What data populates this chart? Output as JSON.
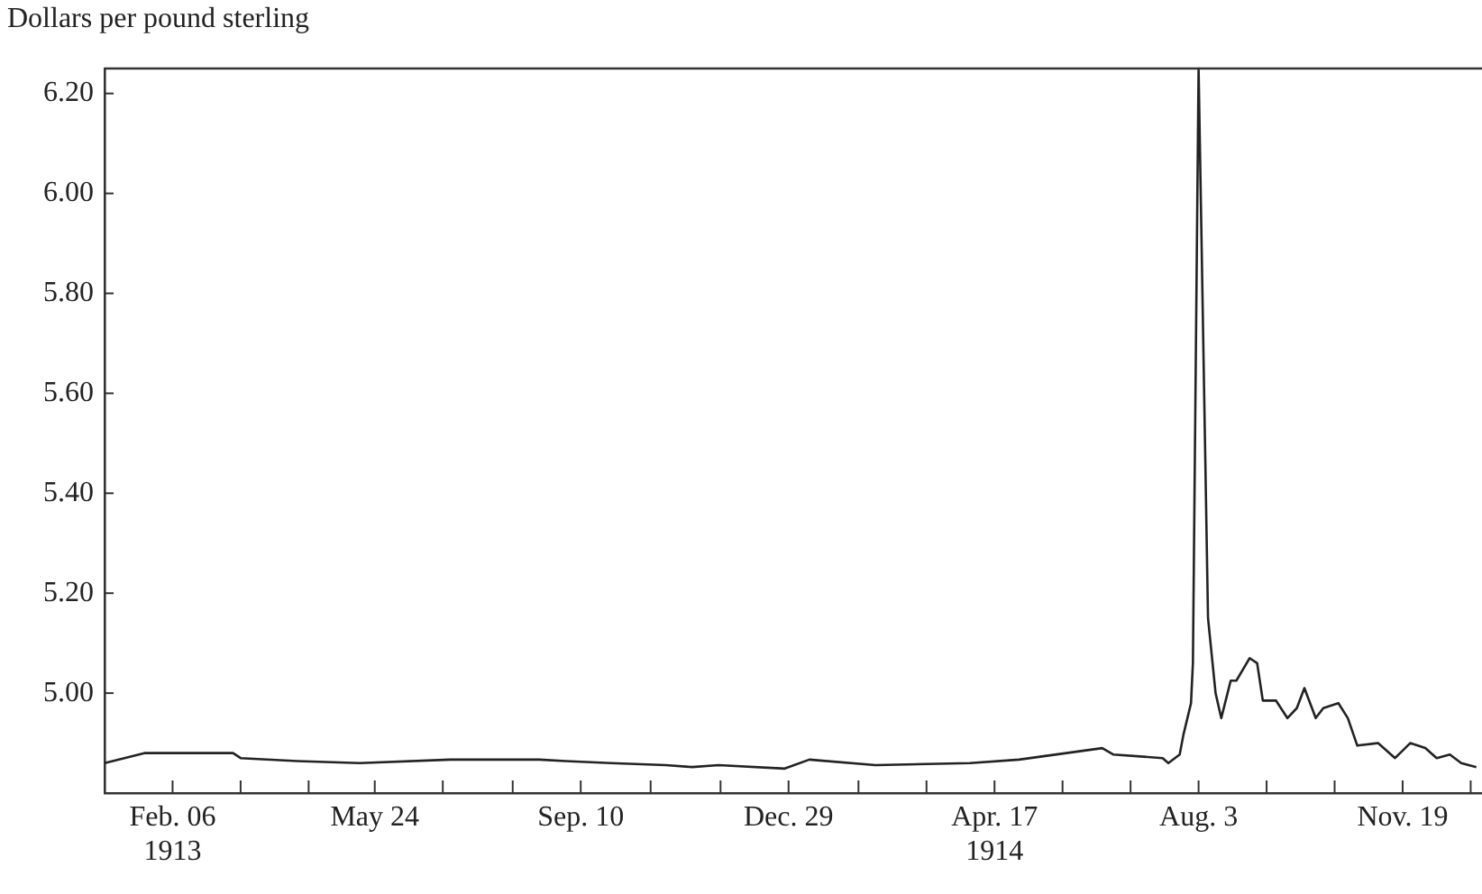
{
  "chart_data": {
    "type": "line",
    "ylabel": "Dollars per pound sterling",
    "color": "#222222",
    "marker": "none",
    "x": [
      "1913-01-01",
      "1913-01-22",
      "1913-02-10",
      "1913-03-10",
      "1913-03-14",
      "1913-04-13",
      "1913-05-16",
      "1913-07-03",
      "1913-08-19",
      "1913-09-02",
      "1913-09-26",
      "1913-10-25",
      "1913-11-08",
      "1913-11-22",
      "1913-12-27",
      "1914-01-09",
      "1914-02-13",
      "1914-04-04",
      "1914-04-30",
      "1914-06-13",
      "1914-06-19",
      "1914-07-15",
      "1914-07-18",
      "1914-07-24",
      "1914-07-26",
      "1914-07-30",
      "1914-07-31",
      "1914-08-03",
      "1914-08-08",
      "1914-08-12",
      "1914-08-15",
      "1914-08-20",
      "1914-08-23",
      "1914-08-30",
      "1914-09-03",
      "1914-09-06",
      "1914-09-13",
      "1914-09-19",
      "1914-09-24",
      "1914-09-28",
      "1914-10-04",
      "1914-10-08",
      "1914-10-16",
      "1914-10-21",
      "1914-10-26",
      "1914-11-06",
      "1914-11-15",
      "1914-11-23",
      "1914-12-01",
      "1914-12-07",
      "1914-12-14",
      "1914-12-20",
      "1914-12-28"
    ],
    "values": [
      4.86,
      4.88,
      4.88,
      4.88,
      4.87,
      4.864,
      4.86,
      4.867,
      4.867,
      4.864,
      4.86,
      4.856,
      4.852,
      4.856,
      4.849,
      4.867,
      4.856,
      4.86,
      4.867,
      4.89,
      4.877,
      4.87,
      4.86,
      4.877,
      4.917,
      4.98,
      5.06,
      6.25,
      5.15,
      5.0,
      4.95,
      5.025,
      5.025,
      5.07,
      5.06,
      4.985,
      4.985,
      4.95,
      4.97,
      5.01,
      4.95,
      4.97,
      4.98,
      4.95,
      4.895,
      4.9,
      4.87,
      4.9,
      4.89,
      4.87,
      4.877,
      4.86,
      4.852
    ],
    "xlim": [
      "1913-01-01",
      "1914-12-31"
    ],
    "xticks": [
      {
        "value": "1913-02-06",
        "label": "Feb. 06\n1913"
      },
      {
        "value": "1913-03-14",
        "label": null
      },
      {
        "value": "1913-04-19",
        "label": null
      },
      {
        "value": "1913-05-24",
        "label": "May 24"
      },
      {
        "value": "1913-06-29",
        "label": null
      },
      {
        "value": "1913-08-05",
        "label": null
      },
      {
        "value": "1913-09-10",
        "label": "Sep. 10"
      },
      {
        "value": "1913-10-17",
        "label": null
      },
      {
        "value": "1913-11-23",
        "label": null
      },
      {
        "value": "1913-12-29",
        "label": "Dec. 29"
      },
      {
        "value": "1914-02-04",
        "label": null
      },
      {
        "value": "1914-03-12",
        "label": null
      },
      {
        "value": "1914-04-17",
        "label": "Apr. 17\n1914"
      },
      {
        "value": "1914-05-23",
        "label": null
      },
      {
        "value": "1914-06-28",
        "label": null
      },
      {
        "value": "1914-08-03",
        "label": "Aug. 3"
      },
      {
        "value": "1914-09-08",
        "label": null
      },
      {
        "value": "1914-10-14",
        "label": null
      },
      {
        "value": "1914-11-19",
        "label": "Nov. 19"
      },
      {
        "value": "1914-12-25",
        "label": null
      }
    ],
    "ylim": [
      4.8,
      6.25
    ],
    "yticks": [
      {
        "value": 5.0,
        "label": "5.00"
      },
      {
        "value": 5.2,
        "label": "5.20"
      },
      {
        "value": 5.4,
        "label": "5.40"
      },
      {
        "value": 5.6,
        "label": "5.60"
      },
      {
        "value": 5.8,
        "label": "5.80"
      },
      {
        "value": 6.0,
        "label": "6.00"
      },
      {
        "value": 6.2,
        "label": "6.20"
      }
    ]
  }
}
